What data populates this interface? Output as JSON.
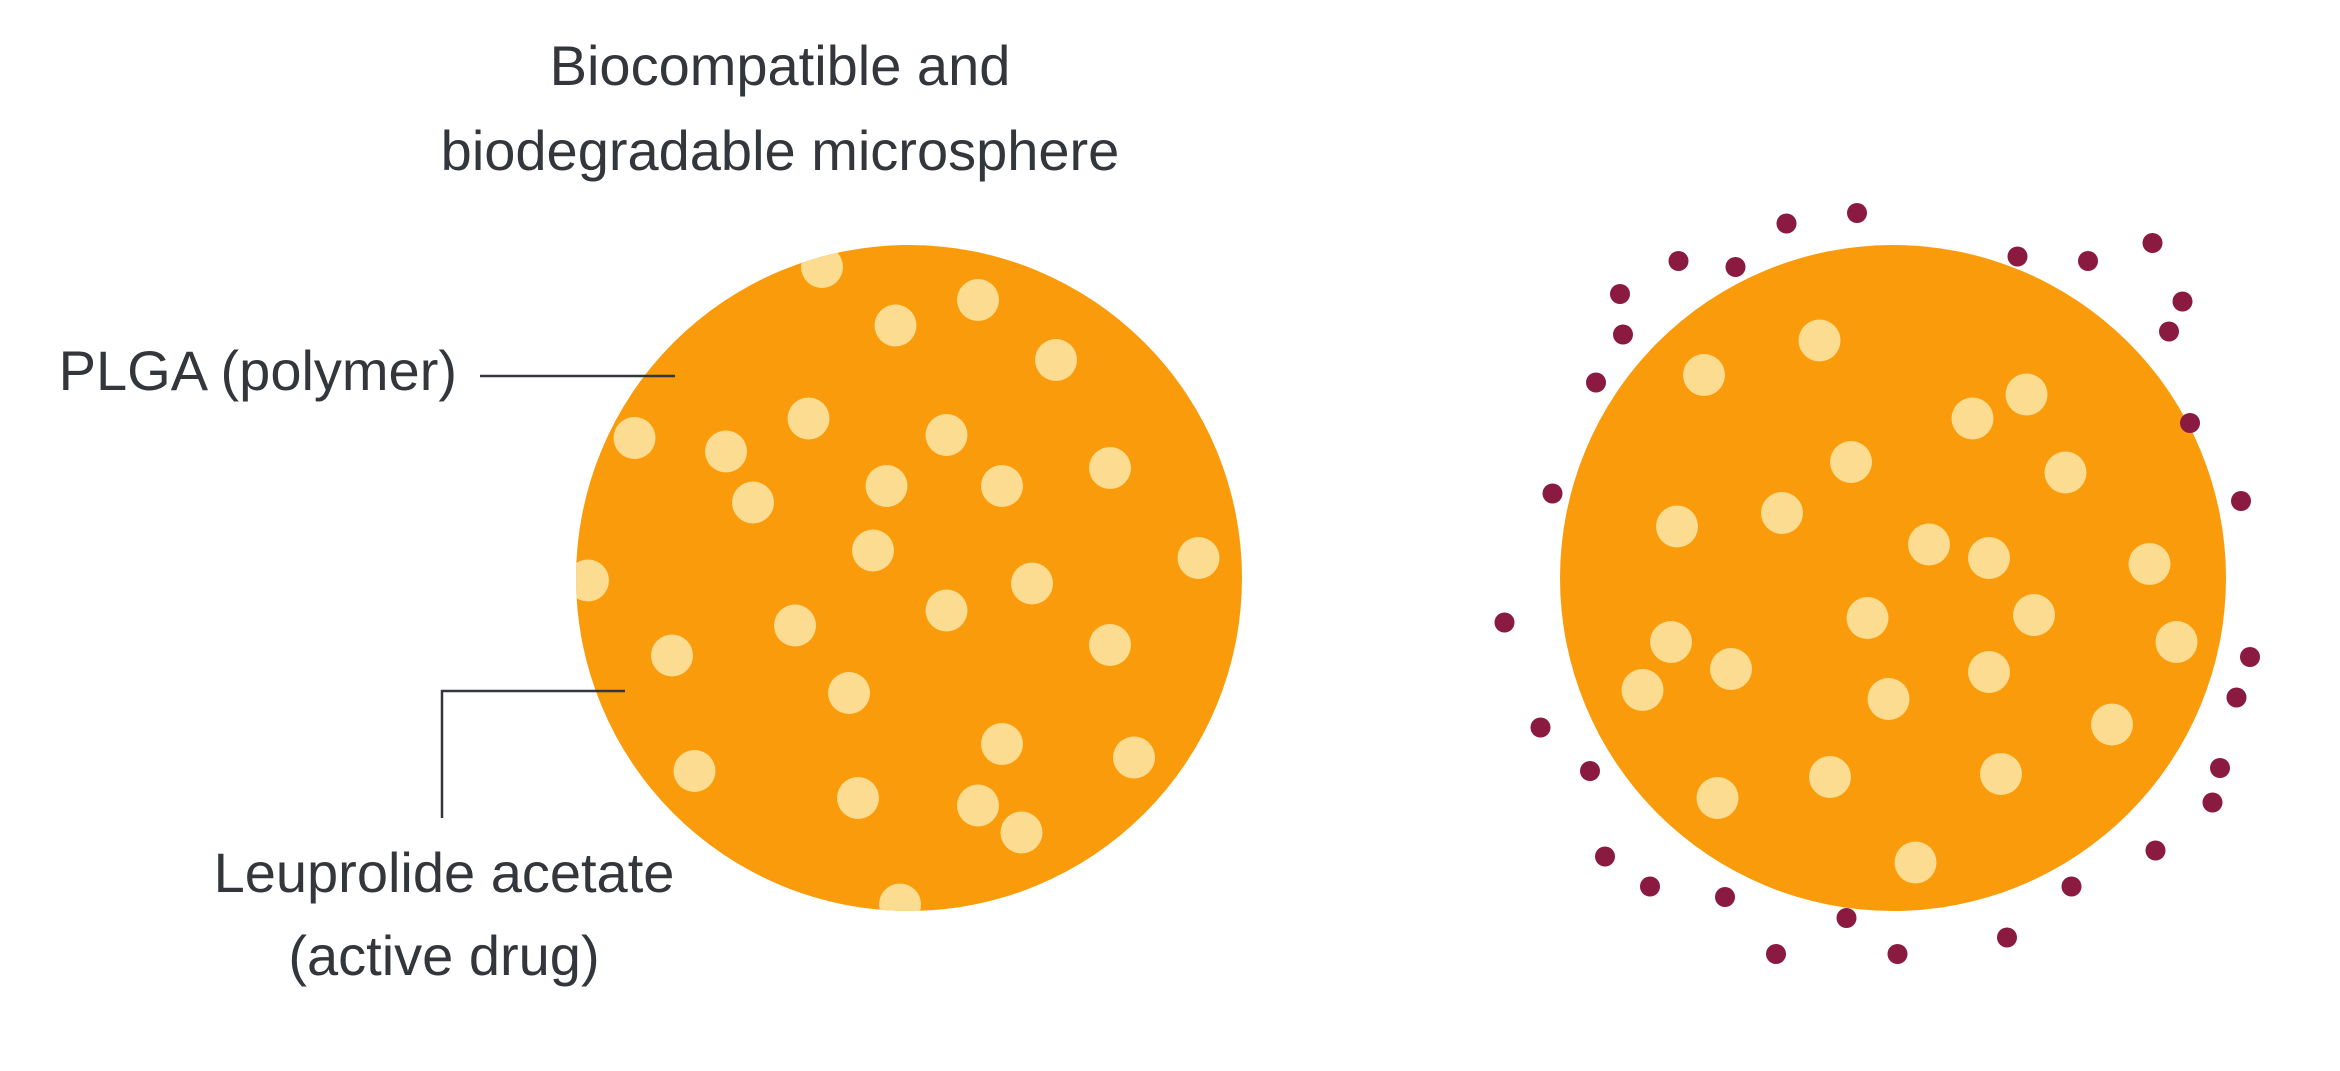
{
  "title": {
    "lines": [
      "Biocompatible and",
      "biodegradable microsphere"
    ]
  },
  "labels": {
    "polymer": "PLGA (polymer)",
    "drug": {
      "lines": [
        "Leuprolide acetate",
        "(active drug)"
      ]
    }
  }
}
